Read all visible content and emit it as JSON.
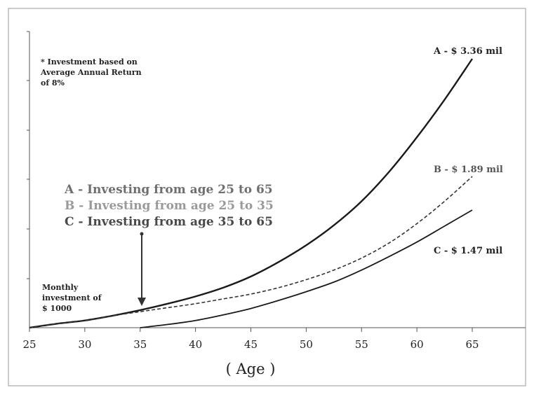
{
  "chart_data": {
    "type": "line",
    "xlabel": "( Age )",
    "x_ticks": [
      "25",
      "30",
      "35",
      "40",
      "45",
      "50",
      "55",
      "60",
      "65"
    ],
    "xlim": [
      25,
      65
    ],
    "ylim": [
      0,
      3.36
    ],
    "ylabel": "",
    "grid": false,
    "note": [
      "* Investment based on",
      "Average Annual Return",
      "of 8%"
    ],
    "legend": [
      {
        "text": "A - Investing from age 25 to 65",
        "color": "#6f6f6f"
      },
      {
        "text": "B - Investing from age 25 to 35",
        "color": "#9a9a9a"
      },
      {
        "text": "C - Investing from age 35 to 65",
        "color": "#4a4a4a"
      }
    ],
    "annotation": [
      "Monthly",
      "investment of",
      "$ 1000"
    ],
    "annotation_x": 35,
    "series": [
      {
        "key": "A",
        "end_label": "A - $ 3.36 mil",
        "style": "solid",
        "color": "#1a1a1a",
        "x": [
          25,
          27.5,
          30,
          32.5,
          35,
          37.5,
          40,
          42.5,
          45,
          47.5,
          50,
          52.5,
          55,
          57.5,
          60,
          62.5,
          65
        ],
        "y": [
          0,
          0.05,
          0.09,
          0.15,
          0.22,
          0.3,
          0.39,
          0.5,
          0.64,
          0.82,
          1.03,
          1.28,
          1.58,
          1.95,
          2.38,
          2.85,
          3.36
        ]
      },
      {
        "key": "B",
        "end_label": "B - $ 1.89 mil",
        "style": "dashed",
        "color": "#333333",
        "x": [
          25,
          27.5,
          30,
          32.5,
          35,
          37.5,
          40,
          42.5,
          45,
          47.5,
          50,
          52.5,
          55,
          57.5,
          60,
          62.5,
          65
        ],
        "y": [
          0,
          0.05,
          0.09,
          0.15,
          0.2,
          0.25,
          0.3,
          0.36,
          0.42,
          0.5,
          0.6,
          0.72,
          0.87,
          1.06,
          1.3,
          1.58,
          1.89
        ]
      },
      {
        "key": "C",
        "end_label": "C - $ 1.47 mil",
        "style": "solid",
        "color": "#1a1a1a",
        "x": [
          35,
          37.5,
          40,
          42.5,
          45,
          47.5,
          50,
          52.5,
          55,
          57.5,
          60,
          62.5,
          65
        ],
        "y": [
          0,
          0.04,
          0.09,
          0.16,
          0.24,
          0.34,
          0.45,
          0.57,
          0.72,
          0.89,
          1.07,
          1.27,
          1.47
        ]
      }
    ]
  }
}
